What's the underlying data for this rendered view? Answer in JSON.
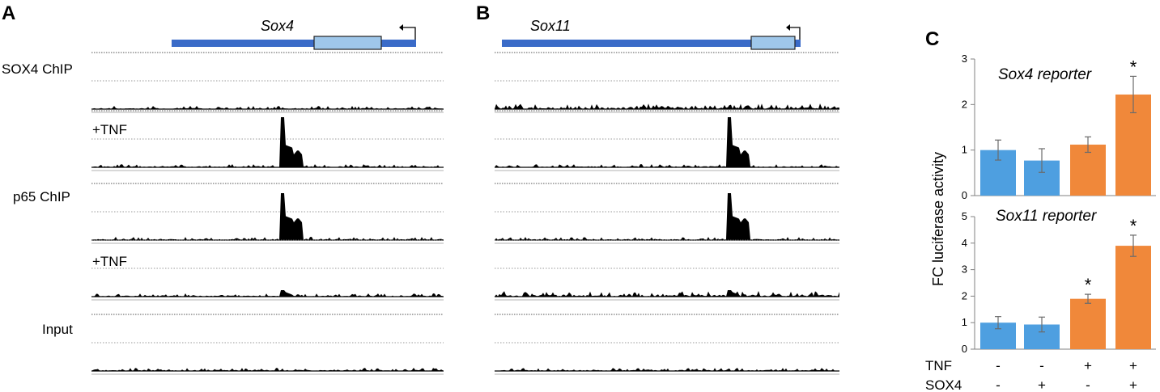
{
  "panels": {
    "a": {
      "letter": "A",
      "gene": "Sox4"
    },
    "b": {
      "letter": "B",
      "gene": "Sox11"
    },
    "c": {
      "letter": "C"
    }
  },
  "track_labels": {
    "sox4_chip": "SOX4 ChIP",
    "tnf_1": "+TNF",
    "p65_chip": "p65 ChIP",
    "tnf_2": "+TNF",
    "input": "Input"
  },
  "colors": {
    "gene_body": "#3a6bc8",
    "exon_fill": "#9fc7ea",
    "track_fill": "#000000",
    "bar_blue": "#4e9fe0",
    "bar_orange": "#f0883a",
    "dotted": "#666666"
  },
  "conditions": {
    "tnf_label": "TNF",
    "sox4_label": "SOX4",
    "tnf_signs": [
      "-",
      "-",
      "+",
      "+"
    ],
    "sox4_signs": [
      "-",
      "+",
      "-",
      "+"
    ]
  },
  "chart_data": [
    {
      "type": "bar",
      "title": "Sox4 reporter",
      "ylabel": "FC luciferase activity",
      "categories": [
        "TNF- SOX4-",
        "TNF- SOX4+",
        "TNF+ SOX4-",
        "TNF+ SOX4+"
      ],
      "values": [
        1.0,
        0.77,
        1.12,
        2.22
      ],
      "errors": [
        0.22,
        0.26,
        0.17,
        0.4
      ],
      "significant": [
        false,
        false,
        false,
        true
      ],
      "bar_colors": [
        "#4e9fe0",
        "#4e9fe0",
        "#f0883a",
        "#f0883a"
      ],
      "ylim": [
        0,
        3
      ],
      "yticks": [
        "0",
        "1",
        "2",
        "3"
      ],
      "significance_marker": "*"
    },
    {
      "type": "bar",
      "title": "Sox11 reporter",
      "ylabel": "FC luciferase activity",
      "categories": [
        "TNF- SOX4-",
        "TNF- SOX4+",
        "TNF+ SOX4-",
        "TNF+ SOX4+"
      ],
      "values": [
        1.0,
        0.93,
        1.9,
        3.9
      ],
      "errors": [
        0.23,
        0.28,
        0.17,
        0.4
      ],
      "significant": [
        false,
        false,
        true,
        true
      ],
      "bar_colors": [
        "#4e9fe0",
        "#4e9fe0",
        "#f0883a",
        "#f0883a"
      ],
      "ylim": [
        0,
        5
      ],
      "yticks": [
        "0",
        "1",
        "2",
        "3",
        "4",
        "5"
      ],
      "significance_marker": "*"
    }
  ]
}
